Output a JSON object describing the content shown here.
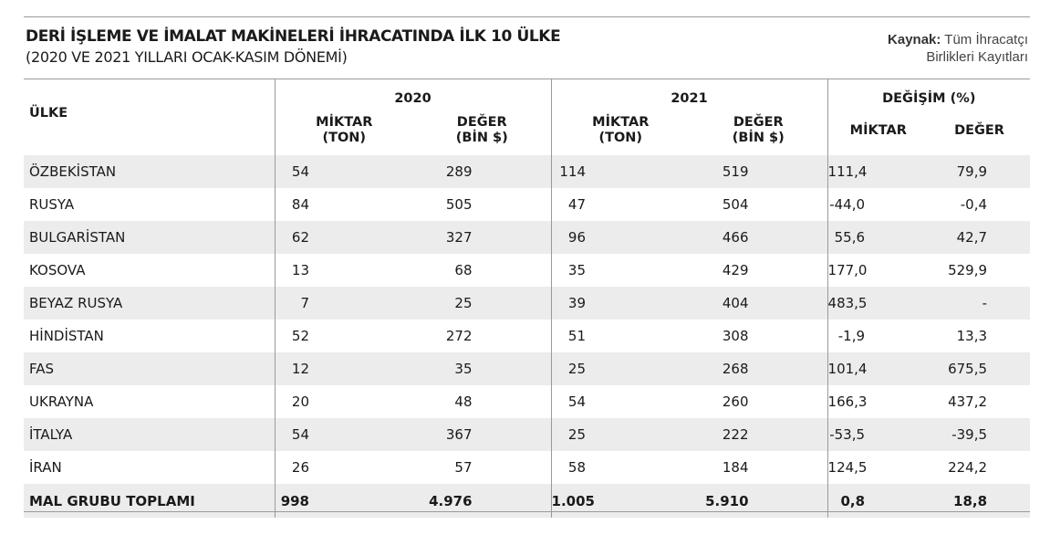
{
  "title": "DERİ İŞLEME VE İMALAT MAKİNELERİ İHRACATINDA İLK 10 ÜLKE",
  "subtitle": "(2020 VE 2021 YILLARI OCAK-KASIM DÖNEMİ)",
  "source": {
    "label": "Kaynak:",
    "line1": "Tüm İhracatçı",
    "line2": "Birlikleri Kayıtları"
  },
  "headers": {
    "country": "ÜLKE",
    "year2020": "2020",
    "year2021": "2021",
    "change": "DEĞİŞİM (%)",
    "qty_2020": [
      "MİKTAR",
      "(TON)"
    ],
    "val_2020": [
      "DEĞER",
      "(BİN $)"
    ],
    "qty_2021": [
      "MİKTAR",
      "(TON)"
    ],
    "val_2021": [
      "DEĞER",
      "(BİN $)"
    ],
    "chg_qty": "MİKTAR",
    "chg_val": "DEĞER"
  },
  "rows": [
    [
      "ÖZBEKİSTAN",
      "54",
      "289",
      "114",
      "519",
      "111,4",
      "79,9"
    ],
    [
      "RUSYA",
      "84",
      "505",
      "47",
      "504",
      "-44,0",
      "-0,4"
    ],
    [
      "BULGARİSTAN",
      "62",
      "327",
      "96",
      "466",
      "55,6",
      "42,7"
    ],
    [
      "KOSOVA",
      "13",
      "68",
      "35",
      "429",
      "177,0",
      "529,9"
    ],
    [
      "BEYAZ RUSYA",
      "7",
      "25",
      "39",
      "404",
      "483,5",
      "-"
    ],
    [
      "HİNDİSTAN",
      "52",
      "272",
      "51",
      "308",
      "-1,9",
      "13,3"
    ],
    [
      "FAS",
      "12",
      "35",
      "25",
      "268",
      "101,4",
      "675,5"
    ],
    [
      "UKRAYNA",
      "20",
      "48",
      "54",
      "260",
      "166,3",
      "437,2"
    ],
    [
      "İTALYA",
      "54",
      "367",
      "25",
      "222",
      "-53,5",
      "-39,5"
    ],
    [
      "İRAN",
      "26",
      "57",
      "58",
      "184",
      "124,5",
      "224,2"
    ]
  ],
  "total": [
    "MAL GRUBU TOPLAMI",
    "998",
    "4.976",
    "1.005",
    "5.910",
    "0,8",
    "18,8"
  ]
}
